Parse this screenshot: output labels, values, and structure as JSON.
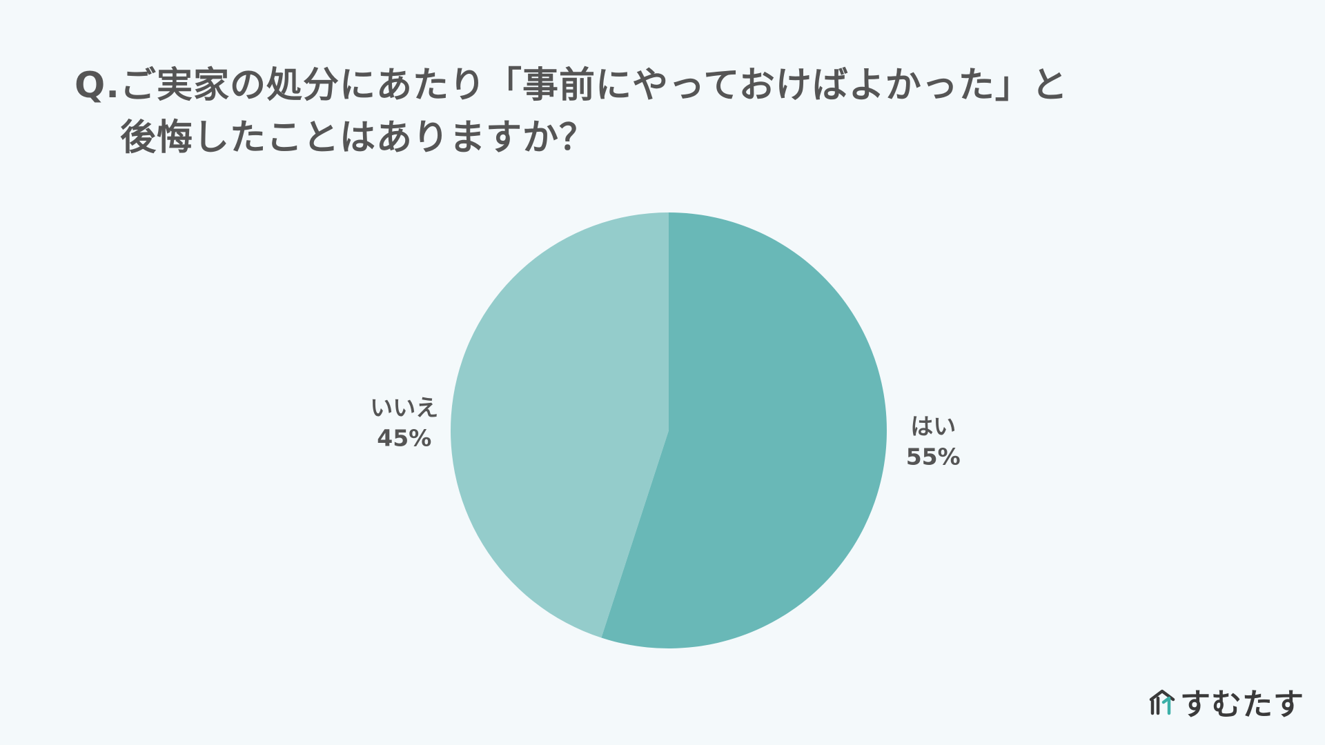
{
  "title": {
    "prefix": "Q.",
    "line1": "ご実家の処分にあたり「事前にやっておけばよかった」と",
    "line2": "後悔したことはありますか？"
  },
  "chart_data": {
    "type": "pie",
    "title": "Q.ご実家の処分にあたり「事前にやっておけばよかった」と後悔したことはありますか？",
    "slices": [
      {
        "label": "はい",
        "value": 55,
        "display": "55%",
        "color": "#69b8b7"
      },
      {
        "label": "いいえ",
        "value": 45,
        "display": "45%",
        "color": "#94cccb"
      }
    ],
    "start_angle": "12 o'clock",
    "direction": "clockwise",
    "label_placement": "outside",
    "legend": "none"
  },
  "brand": {
    "name": "すむたす",
    "mark_color_primary": "#3a3a3a",
    "mark_color_accent": "#3bb0a8"
  }
}
